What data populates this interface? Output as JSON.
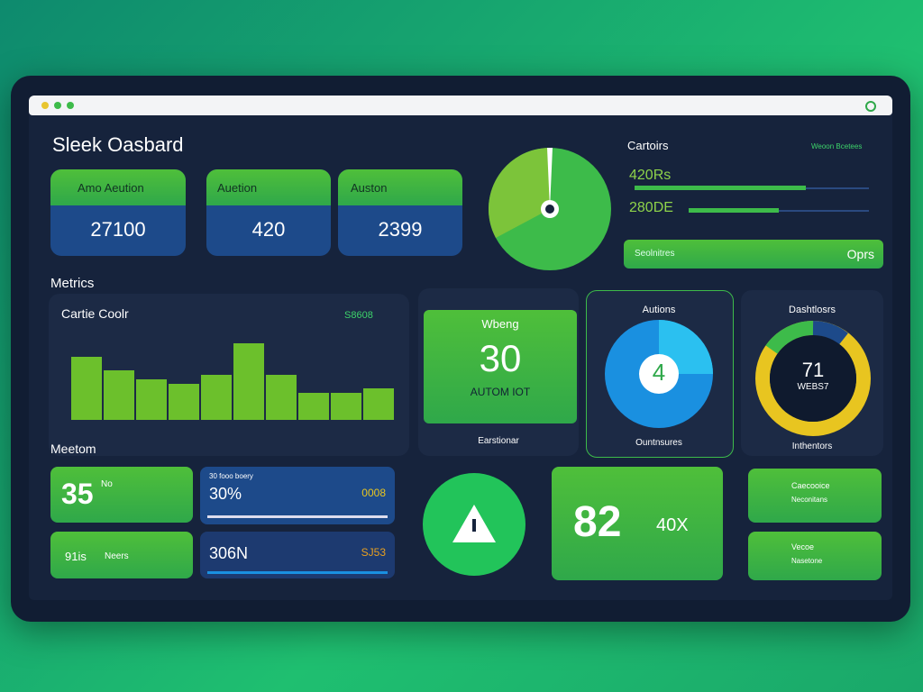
{
  "header": {
    "title": "Sleek Oasbard"
  },
  "stat_cards": [
    {
      "label": "Amo Aeution",
      "value": "27100"
    },
    {
      "label": "Auetion",
      "value": "420"
    },
    {
      "label": "Auston",
      "value": "2399"
    }
  ],
  "metrics": {
    "heading": "Metrics",
    "chart": {
      "title": "Cartie Coolr",
      "badge": "S8608",
      "values": [
        70,
        55,
        45,
        40,
        50,
        85,
        50,
        30,
        30,
        35
      ],
      "ylim": [
        0,
        100
      ]
    }
  },
  "cartoirs": {
    "title": "Cartoirs",
    "link": "Weoon Bcetees",
    "rows": [
      "420Rs",
      "280DE"
    ],
    "bar_label": "Seolnitres",
    "bar_value": "Oprs"
  },
  "tiles": [
    {
      "title": "Wbeng",
      "value": "30",
      "sub": "AUTOM IOT",
      "footer": "Earstionar"
    },
    {
      "title": "Autions",
      "value": "4",
      "footer": "Ountnsures"
    },
    {
      "title": "Dashtlosrs",
      "value": "71",
      "sub": "WEBS7",
      "footer": "Inthentors"
    }
  ],
  "meetom": {
    "heading": "Meetom",
    "big": "35",
    "big_sup": "No",
    "small": "91is",
    "small_label": "Neers",
    "blue1": {
      "label": "30 fooo boery",
      "value": "30%",
      "right": "0008"
    },
    "blue2": {
      "value": "306N",
      "right": "SJ53"
    }
  },
  "bottom": {
    "value": "82",
    "sub": "40X"
  },
  "side": [
    {
      "title": "Caecooice",
      "sub": "Neconitans"
    },
    {
      "title": "Vecoe",
      "sub": "Nasetone"
    }
  ]
}
